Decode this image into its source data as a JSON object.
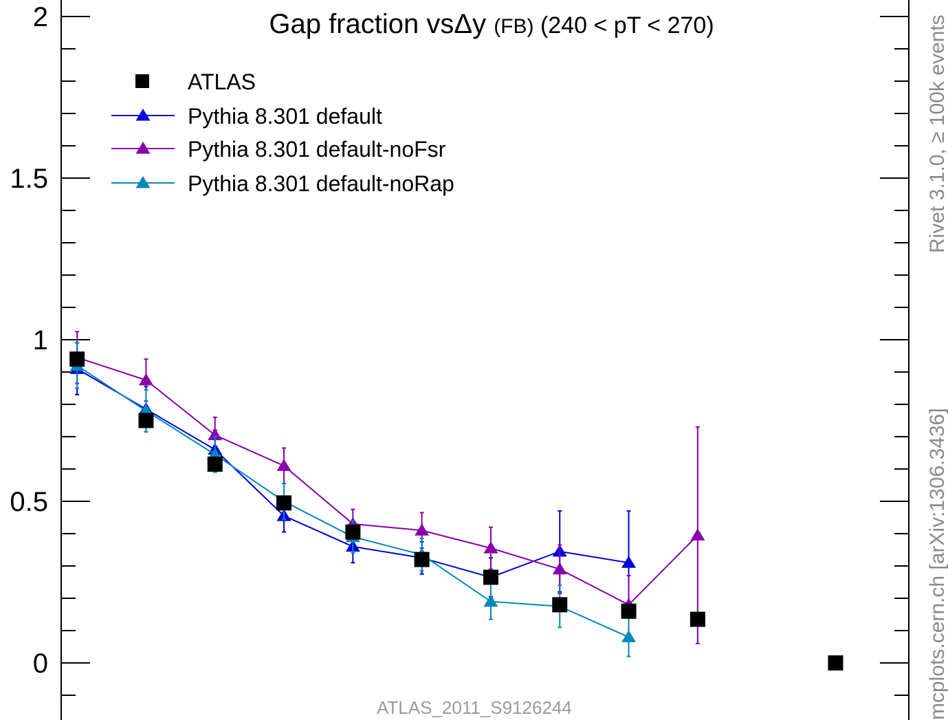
{
  "chart_data": {
    "type": "scatter",
    "title_main": "Gap fraction vs",
    "title_symbol": "Δy",
    "title_fb": "(FB)",
    "title_range": "(240 < pT < 270)",
    "xlim": [
      0,
      11
    ],
    "ylim": [
      -0.17,
      2.05
    ],
    "yticks": [
      0,
      0.5,
      1,
      1.5,
      2
    ],
    "ytick_labels": [
      "0",
      "0.5",
      "1",
      "1.5",
      "2"
    ],
    "grid": false,
    "legend_position": "top-left",
    "series": [
      {
        "name": "ATLAS",
        "marker": "square",
        "color": "#000000",
        "line": false,
        "x": [
          0.5,
          1.5,
          2.5,
          3.5,
          4.5,
          5.5,
          6.5,
          7.5,
          8.5,
          9.5,
          11.5
        ],
        "y": [
          0.94,
          0.75,
          0.615,
          0.495,
          0.405,
          0.32,
          0.265,
          0.18,
          0.16,
          0.135,
          0.0
        ],
        "err": [
          0.02,
          0.02,
          0.02,
          0.02,
          0.02,
          0.02,
          0.02,
          0.02,
          0.02,
          0.0,
          0.0
        ]
      },
      {
        "name": "Pythia 8.301 default",
        "marker": "triangle",
        "color": "#0000dd",
        "line": true,
        "x": [
          0.5,
          1.5,
          2.5,
          3.5,
          4.5,
          5.5,
          6.5,
          7.5,
          8.5
        ],
        "y": [
          0.91,
          0.785,
          0.66,
          0.455,
          0.36,
          0.325,
          0.265,
          0.345,
          0.31
        ],
        "err": [
          0.08,
          0.07,
          0.06,
          0.05,
          0.05,
          0.05,
          0.06,
          0.125,
          0.16
        ]
      },
      {
        "name": "Pythia 8.301 default-noFsr",
        "marker": "triangle",
        "color": "#8800aa",
        "line": true,
        "x": [
          0.5,
          1.5,
          2.5,
          3.5,
          4.5,
          5.5,
          6.5,
          7.5,
          8.5,
          9.5
        ],
        "y": [
          0.945,
          0.875,
          0.705,
          0.61,
          0.43,
          0.41,
          0.355,
          0.29,
          0.18,
          0.395
        ],
        "err": [
          0.08,
          0.065,
          0.055,
          0.055,
          0.045,
          0.055,
          0.065,
          0.075,
          0.09,
          0.335
        ]
      },
      {
        "name": "Pythia 8.301 default-noRap",
        "marker": "triangle",
        "color": "#0088bb",
        "line": true,
        "x": [
          0.5,
          1.5,
          2.5,
          3.5,
          4.5,
          5.5,
          6.5,
          7.5,
          8.5
        ],
        "y": [
          0.92,
          0.78,
          0.645,
          0.5,
          0.39,
          0.335,
          0.19,
          0.175,
          0.08
        ],
        "err": [
          0.07,
          0.065,
          0.055,
          0.055,
          0.05,
          0.05,
          0.055,
          0.065,
          0.06
        ]
      }
    ],
    "side_label_right": "Rivet 3.1.0, ≥ 100k events",
    "side_label_left": "mcplots.cern.ch [arXiv:1306.3436]",
    "watermark": "ATLAS_2011_S9126244"
  }
}
